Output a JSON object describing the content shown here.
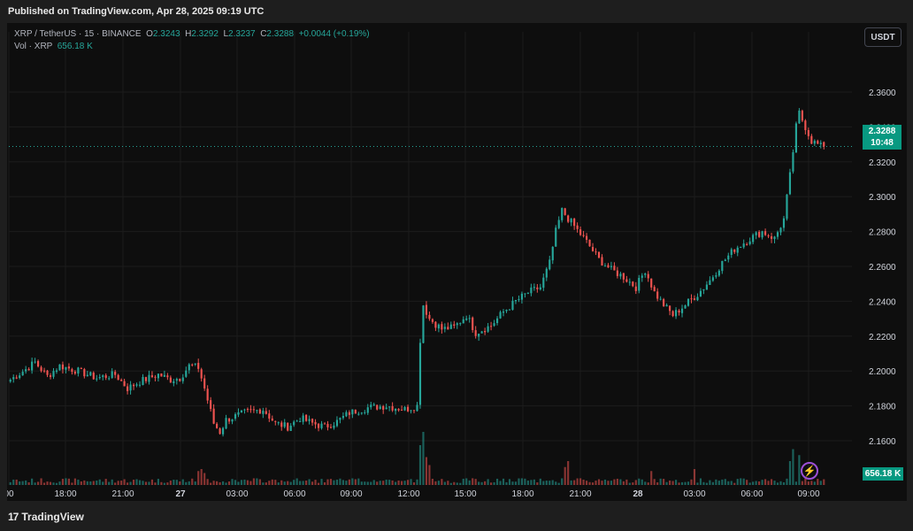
{
  "header": {
    "published": "Published on TradingView.com, Apr 28, 2025 09:19 UTC"
  },
  "legend": {
    "symbol": "XRP / TetherUS · 15 · BINANCE",
    "o_label": "O",
    "o_value": "2.3243",
    "h_label": "H",
    "h_value": "2.3292",
    "l_label": "L",
    "l_value": "2.3237",
    "c_label": "C",
    "c_value": "2.3288",
    "change": "+0.0044 (+0.19%)",
    "vol_label": "Vol · XRP",
    "vol_value": "656.18 K"
  },
  "currency_button": "USDT",
  "price_tag": {
    "price": "2.3288",
    "countdown": "10:48"
  },
  "volume_tag": "656.18 K",
  "footer": {
    "logo_mark": "17",
    "logo_text": "TradingView"
  },
  "icons": {
    "alert": "lightning-bolt-icon",
    "logo": "tradingview-logo-icon"
  },
  "colors": {
    "up": "#26a69a",
    "down": "#ef5350",
    "background": "#0e0e0e",
    "price_tag": "#089981"
  },
  "chart_data": {
    "type": "candlestick",
    "y_ticks": [
      "2.3600",
      "2.3400",
      "2.3200",
      "2.3000",
      "2.2800",
      "2.2600",
      "2.2400",
      "2.2200",
      "2.2000",
      "2.1800",
      "2.1600"
    ],
    "x_ticks": [
      "00",
      "18:00",
      "21:00",
      "27",
      "03:00",
      "06:00",
      "09:00",
      "12:00",
      "15:00",
      "18:00",
      "21:00",
      "28",
      "03:00",
      "06:00",
      "09:00"
    ],
    "ylim": [
      2.145,
      2.37
    ],
    "last_price": 2.3288,
    "anchors": [
      [
        0,
        2.195
      ],
      [
        5,
        2.201
      ],
      [
        8,
        2.205
      ],
      [
        12,
        2.197
      ],
      [
        16,
        2.203
      ],
      [
        22,
        2.2
      ],
      [
        28,
        2.196
      ],
      [
        34,
        2.198
      ],
      [
        38,
        2.19
      ],
      [
        42,
        2.194
      ],
      [
        48,
        2.198
      ],
      [
        52,
        2.195
      ],
      [
        55,
        2.196
      ],
      [
        58,
        2.203
      ],
      [
        61,
        2.202
      ],
      [
        63,
        2.19
      ],
      [
        66,
        2.17
      ],
      [
        68,
        2.165
      ],
      [
        70,
        2.172
      ],
      [
        76,
        2.176
      ],
      [
        82,
        2.178
      ],
      [
        86,
        2.17
      ],
      [
        90,
        2.168
      ],
      [
        94,
        2.173
      ],
      [
        98,
        2.17
      ],
      [
        102,
        2.168
      ],
      [
        106,
        2.171
      ],
      [
        110,
        2.176
      ],
      [
        116,
        2.179
      ],
      [
        122,
        2.18
      ],
      [
        128,
        2.178
      ],
      [
        132,
        2.18
      ],
      [
        133,
        2.218
      ],
      [
        134,
        2.238
      ],
      [
        136,
        2.23
      ],
      [
        140,
        2.224
      ],
      [
        144,
        2.225
      ],
      [
        148,
        2.232
      ],
      [
        151,
        2.222
      ],
      [
        156,
        2.226
      ],
      [
        160,
        2.234
      ],
      [
        164,
        2.24
      ],
      [
        168,
        2.245
      ],
      [
        172,
        2.248
      ],
      [
        175,
        2.262
      ],
      [
        177,
        2.28
      ],
      [
        179,
        2.292
      ],
      [
        183,
        2.283
      ],
      [
        187,
        2.274
      ],
      [
        191,
        2.264
      ],
      [
        195,
        2.258
      ],
      [
        199,
        2.254
      ],
      [
        203,
        2.248
      ],
      [
        206,
        2.258
      ],
      [
        209,
        2.245
      ],
      [
        212,
        2.238
      ],
      [
        215,
        2.232
      ],
      [
        219,
        2.238
      ],
      [
        223,
        2.244
      ],
      [
        227,
        2.252
      ],
      [
        231,
        2.262
      ],
      [
        235,
        2.27
      ],
      [
        240,
        2.276
      ],
      [
        244,
        2.28
      ],
      [
        248,
        2.276
      ],
      [
        251,
        2.287
      ],
      [
        253,
        2.312
      ],
      [
        255,
        2.34
      ],
      [
        256,
        2.348
      ],
      [
        258,
        2.34
      ],
      [
        260,
        2.332
      ],
      [
        262,
        2.33
      ],
      [
        263,
        2.3288
      ]
    ],
    "volume_spikes": [
      [
        61,
        0.35
      ],
      [
        62,
        0.4
      ],
      [
        63,
        0.3
      ],
      [
        133,
        1.0
      ],
      [
        134,
        1.4
      ],
      [
        135,
        0.7
      ],
      [
        136,
        0.5
      ],
      [
        180,
        0.45
      ],
      [
        181,
        0.6
      ],
      [
        208,
        0.35
      ],
      [
        222,
        0.4
      ],
      [
        253,
        0.6
      ],
      [
        254,
        0.9
      ],
      [
        256,
        0.75
      ]
    ]
  }
}
